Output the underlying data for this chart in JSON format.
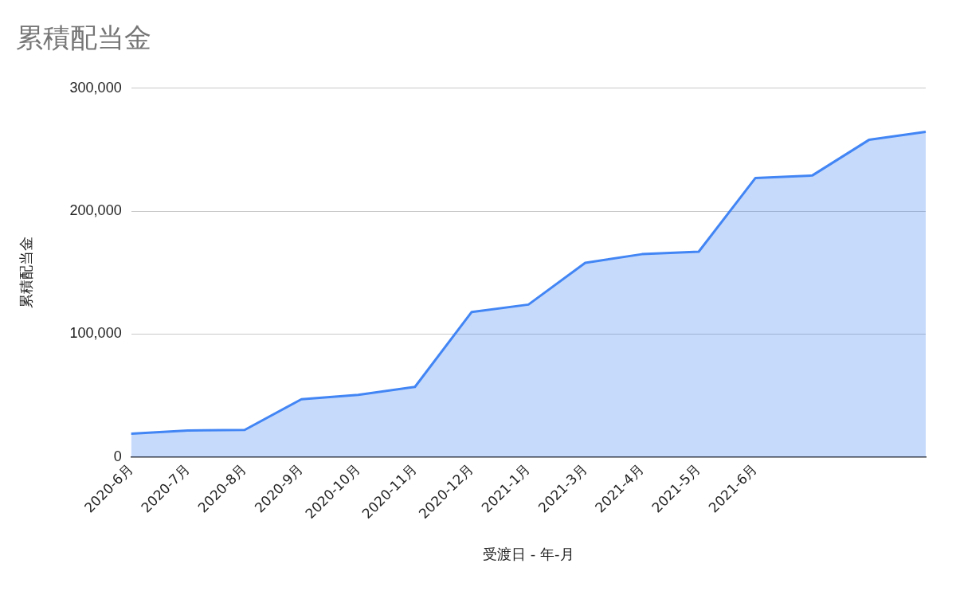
{
  "chart_data": {
    "type": "area",
    "title": "累積配当金",
    "xlabel": "受渡日 - 年-月",
    "ylabel": "累積配当金",
    "categories": [
      "2020-6月",
      "2020-7月",
      "2020-8月",
      "2020-9月",
      "2020-10月",
      "2020-11月",
      "2020-12月",
      "2021-1月",
      "2021-3月",
      "2021-4月",
      "2021-5月",
      "2021-6月",
      null,
      null,
      null
    ],
    "series": [
      {
        "color": "#4285f4",
        "values": [
          19000,
          21500,
          22000,
          47000,
          50500,
          57000,
          118000,
          124000,
          158000,
          165000,
          167000,
          227000,
          229000,
          258000,
          264500
        ]
      }
    ],
    "ylim": [
      0,
      300000
    ],
    "yticks": [
      {
        "value": 0,
        "label": "0"
      },
      {
        "value": 100000,
        "label": "100,000"
      },
      {
        "value": 200000,
        "label": "200,000"
      },
      {
        "value": 300000,
        "label": "300,000"
      }
    ],
    "grid": "y",
    "legend": false,
    "marker": "none",
    "line_style": "solid"
  }
}
